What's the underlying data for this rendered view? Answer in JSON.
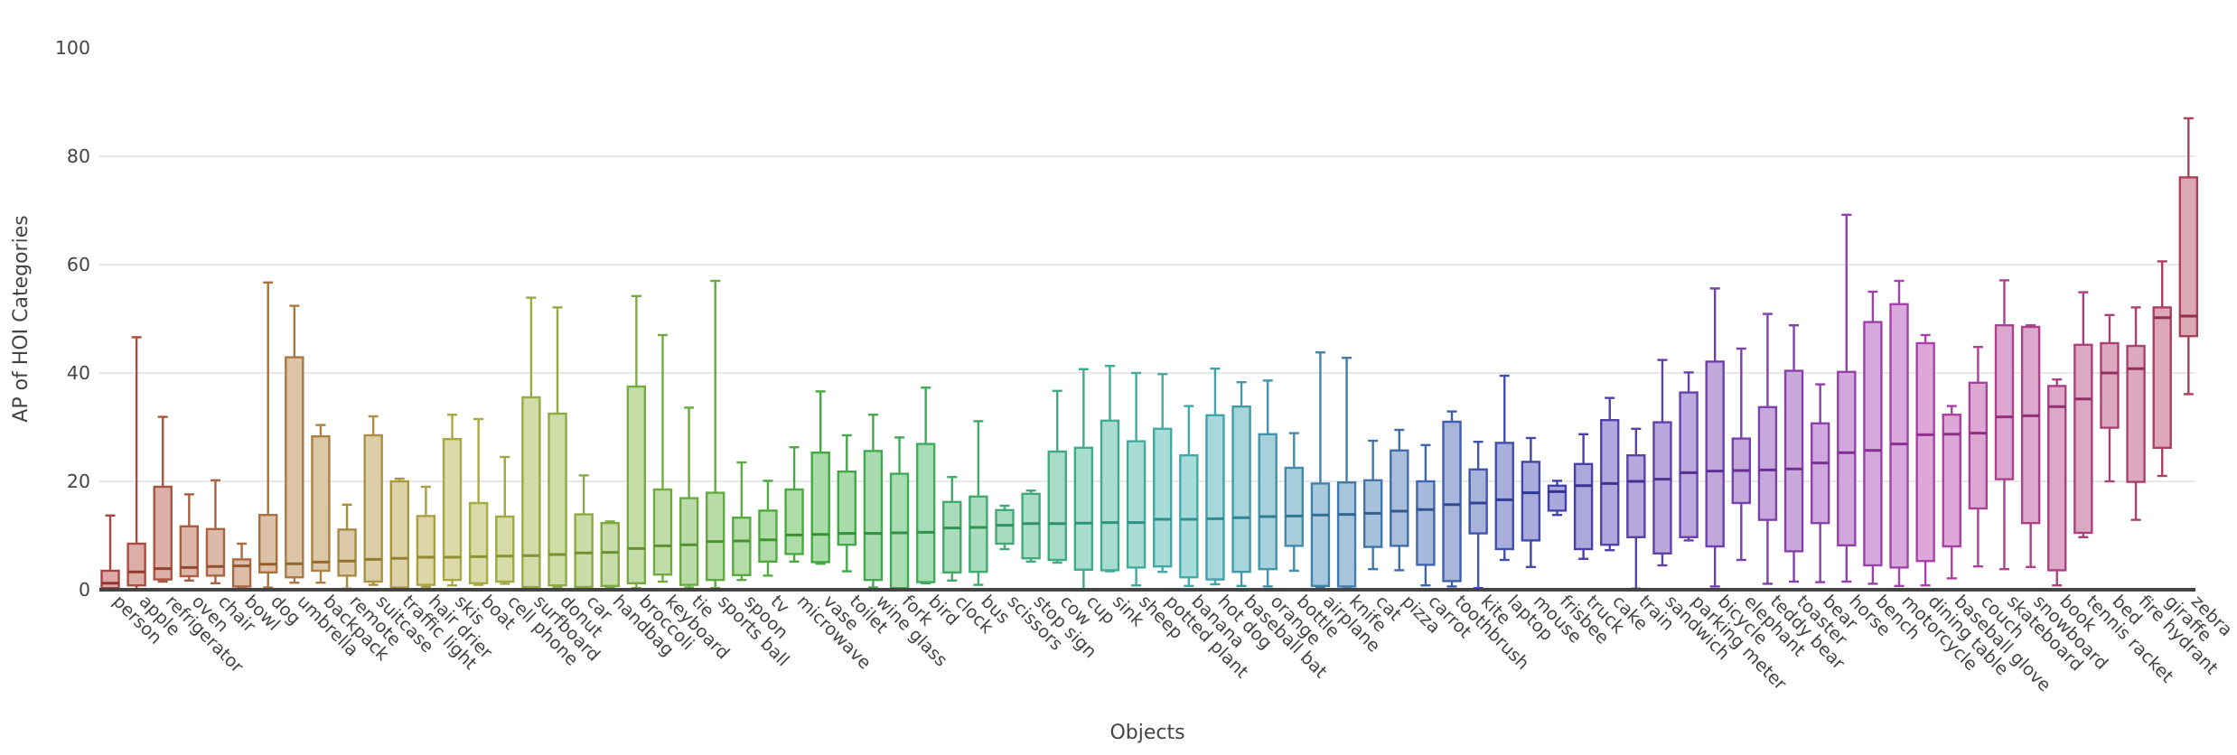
{
  "chart_data": {
    "type": "box",
    "title": "",
    "xlabel": "Objects",
    "ylabel": "AP of HOI Categories",
    "ylim": [
      0,
      100
    ],
    "yticks": [
      0,
      20,
      40,
      60,
      80,
      100
    ],
    "grid": true,
    "legend": "none",
    "palette": {
      "description": "rainbow hue sweep across categories, red to rose",
      "hue_start": 2,
      "hue_step": 4.34,
      "border_sat": 45,
      "border_light": 46,
      "fill_sat": 42,
      "fill_light": 76,
      "median_sat": 50,
      "median_light": 38,
      "text_color": "#444444",
      "grid_color": "#e8e8e8",
      "axis_color": "#444444"
    },
    "boxes": [
      {
        "category": "person",
        "min": 0.1,
        "q1": 0.3,
        "median": 1.2,
        "q3": 3.5,
        "max": 13.7
      },
      {
        "category": "apple",
        "min": 0.1,
        "q1": 0.8,
        "median": 3.3,
        "q3": 8.5,
        "max": 46.6
      },
      {
        "category": "refrigerator",
        "min": 1.5,
        "q1": 1.9,
        "median": 3.9,
        "q3": 19.0,
        "max": 31.9
      },
      {
        "category": "oven",
        "min": 1.7,
        "q1": 2.5,
        "median": 4.1,
        "q3": 11.7,
        "max": 17.6
      },
      {
        "category": "chair",
        "min": 1.2,
        "q1": 2.6,
        "median": 4.3,
        "q3": 11.2,
        "max": 20.2
      },
      {
        "category": "bowl",
        "min": 0.4,
        "q1": 0.6,
        "median": 4.4,
        "q3": 5.6,
        "max": 8.5
      },
      {
        "category": "dog",
        "min": 0.4,
        "q1": 3.2,
        "median": 4.7,
        "q3": 13.8,
        "max": 56.7
      },
      {
        "category": "umbrella",
        "min": 1.3,
        "q1": 2.3,
        "median": 4.8,
        "q3": 42.9,
        "max": 52.4
      },
      {
        "category": "backpack",
        "min": 1.3,
        "q1": 3.5,
        "median": 5.1,
        "q3": 28.3,
        "max": 30.4
      },
      {
        "category": "remote",
        "min": 0.2,
        "q1": 2.6,
        "median": 5.3,
        "q3": 11.1,
        "max": 15.7
      },
      {
        "category": "suitcase",
        "min": 0.9,
        "q1": 1.5,
        "median": 5.6,
        "q3": 28.5,
        "max": 32.0
      },
      {
        "category": "traffic light",
        "min": 0.2,
        "q1": 0.4,
        "median": 5.8,
        "q3": 20.0,
        "max": 20.5
      },
      {
        "category": "hair drier",
        "min": 0.5,
        "q1": 0.9,
        "median": 6.0,
        "q3": 13.6,
        "max": 19.0
      },
      {
        "category": "skis",
        "min": 0.8,
        "q1": 1.8,
        "median": 6.0,
        "q3": 27.8,
        "max": 32.3
      },
      {
        "category": "boat",
        "min": 0.9,
        "q1": 1.2,
        "median": 6.1,
        "q3": 16.0,
        "max": 31.5
      },
      {
        "category": "cell phone",
        "min": 1.1,
        "q1": 1.5,
        "median": 6.2,
        "q3": 13.5,
        "max": 24.5
      },
      {
        "category": "surfboard",
        "min": 0.3,
        "q1": 0.5,
        "median": 6.3,
        "q3": 35.5,
        "max": 53.9
      },
      {
        "category": "donut",
        "min": 0.5,
        "q1": 0.8,
        "median": 6.5,
        "q3": 32.5,
        "max": 52.1
      },
      {
        "category": "car",
        "min": 0.3,
        "q1": 0.5,
        "median": 6.8,
        "q3": 13.9,
        "max": 21.1
      },
      {
        "category": "handbag",
        "min": 0.4,
        "q1": 0.7,
        "median": 6.9,
        "q3": 12.3,
        "max": 12.6
      },
      {
        "category": "broccoli",
        "min": 0.3,
        "q1": 1.2,
        "median": 7.6,
        "q3": 37.5,
        "max": 54.2
      },
      {
        "category": "keyboard",
        "min": 1.5,
        "q1": 2.8,
        "median": 8.1,
        "q3": 18.5,
        "max": 47.0
      },
      {
        "category": "tie",
        "min": 0.4,
        "q1": 0.9,
        "median": 8.3,
        "q3": 16.9,
        "max": 33.6
      },
      {
        "category": "sports ball",
        "min": 0.3,
        "q1": 1.8,
        "median": 8.9,
        "q3": 17.9,
        "max": 57.0
      },
      {
        "category": "spoon",
        "min": 1.8,
        "q1": 2.7,
        "median": 9.0,
        "q3": 13.3,
        "max": 23.5
      },
      {
        "category": "tv",
        "min": 2.6,
        "q1": 5.2,
        "median": 9.2,
        "q3": 14.6,
        "max": 20.1
      },
      {
        "category": "microwave",
        "min": 5.2,
        "q1": 6.6,
        "median": 10.1,
        "q3": 18.5,
        "max": 26.3
      },
      {
        "category": "vase",
        "min": 4.8,
        "q1": 5.1,
        "median": 10.2,
        "q3": 25.3,
        "max": 36.6
      },
      {
        "category": "toilet",
        "min": 3.4,
        "q1": 8.3,
        "median": 10.4,
        "q3": 21.8,
        "max": 28.5
      },
      {
        "category": "wine glass",
        "min": 0.4,
        "q1": 1.8,
        "median": 10.4,
        "q3": 25.6,
        "max": 32.3
      },
      {
        "category": "fork",
        "min": 0.1,
        "q1": 0.3,
        "median": 10.5,
        "q3": 21.4,
        "max": 28.1
      },
      {
        "category": "bird",
        "min": 1.2,
        "q1": 1.4,
        "median": 10.6,
        "q3": 26.9,
        "max": 37.3
      },
      {
        "category": "clock",
        "min": 1.7,
        "q1": 3.2,
        "median": 11.4,
        "q3": 16.2,
        "max": 20.8
      },
      {
        "category": "bus",
        "min": 0.9,
        "q1": 3.3,
        "median": 11.5,
        "q3": 17.2,
        "max": 31.1
      },
      {
        "category": "scissors",
        "min": 7.5,
        "q1": 8.5,
        "median": 11.9,
        "q3": 14.7,
        "max": 15.5
      },
      {
        "category": "stop sign",
        "min": 5.2,
        "q1": 5.8,
        "median": 12.2,
        "q3": 17.7,
        "max": 18.3
      },
      {
        "category": "cow",
        "min": 5.0,
        "q1": 5.5,
        "median": 12.2,
        "q3": 25.5,
        "max": 36.7
      },
      {
        "category": "cup",
        "min": 0.1,
        "q1": 3.7,
        "median": 12.3,
        "q3": 26.2,
        "max": 40.7
      },
      {
        "category": "sink",
        "min": 3.4,
        "q1": 3.6,
        "median": 12.4,
        "q3": 31.2,
        "max": 41.3
      },
      {
        "category": "sheep",
        "min": 0.8,
        "q1": 4.1,
        "median": 12.4,
        "q3": 27.4,
        "max": 40.0
      },
      {
        "category": "potted plant",
        "min": 3.3,
        "q1": 4.3,
        "median": 13.0,
        "q3": 29.7,
        "max": 39.8
      },
      {
        "category": "banana",
        "min": 0.7,
        "q1": 2.3,
        "median": 13.0,
        "q3": 24.8,
        "max": 33.9
      },
      {
        "category": "hot dog",
        "min": 1.0,
        "q1": 1.9,
        "median": 13.1,
        "q3": 32.2,
        "max": 40.8
      },
      {
        "category": "baseball bat",
        "min": 0.7,
        "q1": 3.3,
        "median": 13.3,
        "q3": 33.8,
        "max": 38.3
      },
      {
        "category": "orange",
        "min": 0.6,
        "q1": 3.8,
        "median": 13.5,
        "q3": 28.7,
        "max": 38.6
      },
      {
        "category": "bottle",
        "min": 3.5,
        "q1": 8.1,
        "median": 13.6,
        "q3": 22.5,
        "max": 28.9
      },
      {
        "category": "airplane",
        "min": 0.4,
        "q1": 0.7,
        "median": 13.8,
        "q3": 19.6,
        "max": 43.8
      },
      {
        "category": "knife",
        "min": 0.2,
        "q1": 0.6,
        "median": 13.9,
        "q3": 19.8,
        "max": 42.8
      },
      {
        "category": "cat",
        "min": 3.8,
        "q1": 7.9,
        "median": 14.1,
        "q3": 20.2,
        "max": 27.5
      },
      {
        "category": "pizza",
        "min": 3.6,
        "q1": 8.1,
        "median": 14.5,
        "q3": 25.7,
        "max": 29.5
      },
      {
        "category": "carrot",
        "min": 0.8,
        "q1": 4.6,
        "median": 14.8,
        "q3": 20.0,
        "max": 26.7
      },
      {
        "category": "toothbrush",
        "min": 0.6,
        "q1": 1.6,
        "median": 15.7,
        "q3": 31.0,
        "max": 32.9
      },
      {
        "category": "kite",
        "min": 0.3,
        "q1": 10.4,
        "median": 16.0,
        "q3": 22.2,
        "max": 27.3
      },
      {
        "category": "laptop",
        "min": 5.5,
        "q1": 7.5,
        "median": 16.6,
        "q3": 27.1,
        "max": 39.5
      },
      {
        "category": "mouse",
        "min": 4.2,
        "q1": 9.1,
        "median": 17.9,
        "q3": 23.6,
        "max": 28.0
      },
      {
        "category": "frisbee",
        "min": 13.8,
        "q1": 14.6,
        "median": 18.1,
        "q3": 19.2,
        "max": 20.1
      },
      {
        "category": "truck",
        "min": 5.7,
        "q1": 7.5,
        "median": 19.2,
        "q3": 23.2,
        "max": 28.7
      },
      {
        "category": "cake",
        "min": 7.3,
        "q1": 8.3,
        "median": 19.6,
        "q3": 31.3,
        "max": 35.4
      },
      {
        "category": "train",
        "min": 0.2,
        "q1": 9.7,
        "median": 20.0,
        "q3": 24.8,
        "max": 29.7
      },
      {
        "category": "sandwich",
        "min": 4.5,
        "q1": 6.7,
        "median": 20.4,
        "q3": 30.9,
        "max": 42.4
      },
      {
        "category": "parking meter",
        "min": 9.1,
        "q1": 9.7,
        "median": 21.6,
        "q3": 36.4,
        "max": 40.1
      },
      {
        "category": "bicycle",
        "min": 0.6,
        "q1": 8.0,
        "median": 21.9,
        "q3": 42.1,
        "max": 55.6
      },
      {
        "category": "elephant",
        "min": 5.5,
        "q1": 16.0,
        "median": 22.0,
        "q3": 27.9,
        "max": 44.5
      },
      {
        "category": "teddy bear",
        "min": 1.1,
        "q1": 12.9,
        "median": 22.1,
        "q3": 33.7,
        "max": 50.9
      },
      {
        "category": "toaster",
        "min": 1.5,
        "q1": 7.1,
        "median": 22.3,
        "q3": 40.4,
        "max": 48.8
      },
      {
        "category": "bear",
        "min": 1.4,
        "q1": 12.3,
        "median": 23.4,
        "q3": 30.7,
        "max": 37.9
      },
      {
        "category": "horse",
        "min": 1.5,
        "q1": 8.2,
        "median": 25.3,
        "q3": 40.2,
        "max": 69.2
      },
      {
        "category": "bench",
        "min": 1.1,
        "q1": 4.5,
        "median": 25.7,
        "q3": 49.4,
        "max": 55.0
      },
      {
        "category": "motorcycle",
        "min": 0.7,
        "q1": 4.1,
        "median": 26.9,
        "q3": 52.7,
        "max": 57.0
      },
      {
        "category": "dining table",
        "min": 0.8,
        "q1": 5.3,
        "median": 28.6,
        "q3": 45.5,
        "max": 47.0
      },
      {
        "category": "baseball glove",
        "min": 2.1,
        "q1": 8.0,
        "median": 28.7,
        "q3": 32.3,
        "max": 33.9
      },
      {
        "category": "couch",
        "min": 4.3,
        "q1": 15.0,
        "median": 28.9,
        "q3": 38.2,
        "max": 44.8
      },
      {
        "category": "skateboard",
        "min": 3.8,
        "q1": 20.4,
        "median": 31.9,
        "q3": 48.8,
        "max": 57.1
      },
      {
        "category": "snowboard",
        "min": 4.2,
        "q1": 12.3,
        "median": 32.1,
        "q3": 48.5,
        "max": 48.8
      },
      {
        "category": "book",
        "min": 0.8,
        "q1": 3.6,
        "median": 33.8,
        "q3": 37.6,
        "max": 38.8
      },
      {
        "category": "tennis racket",
        "min": 9.7,
        "q1": 10.5,
        "median": 35.2,
        "q3": 45.2,
        "max": 54.9
      },
      {
        "category": "bed",
        "min": 20.0,
        "q1": 29.9,
        "median": 40.0,
        "q3": 45.5,
        "max": 50.7
      },
      {
        "category": "fire hydrant",
        "min": 12.9,
        "q1": 19.9,
        "median": 40.8,
        "q3": 45.0,
        "max": 52.1
      },
      {
        "category": "giraffe",
        "min": 21.0,
        "q1": 26.2,
        "median": 50.2,
        "q3": 52.1,
        "max": 60.6
      },
      {
        "category": "zebra",
        "min": 36.1,
        "q1": 46.8,
        "median": 50.5,
        "q3": 76.1,
        "max": 87.0
      }
    ]
  }
}
